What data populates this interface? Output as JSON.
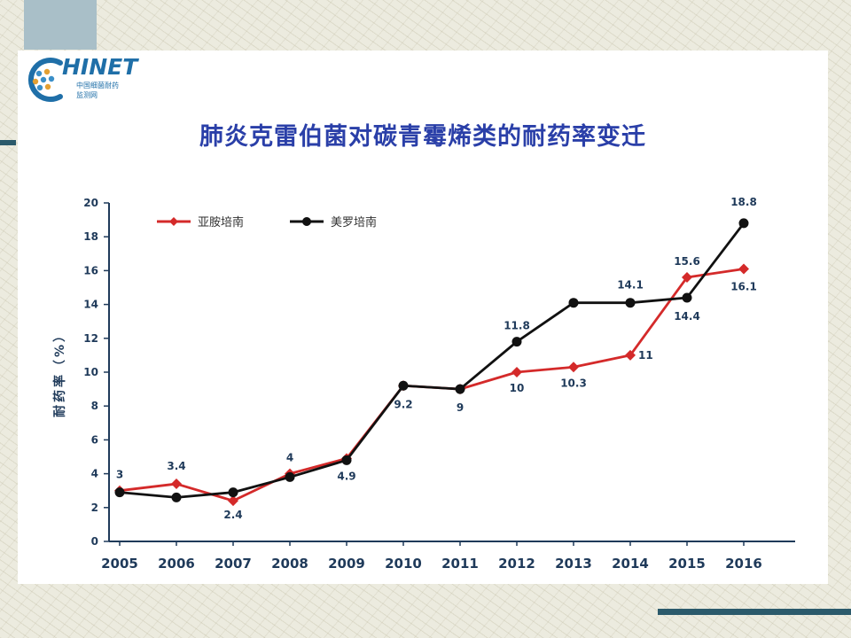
{
  "logo": {
    "text": "HINET",
    "sub_cn": "中国细菌耐药",
    "sub_cn2": "监测网"
  },
  "chart_data": {
    "type": "line",
    "title": "肺炎克雷伯菌对碳青霉烯类的耐药率变迁",
    "xlabel": "",
    "ylabel": "耐药率（%）",
    "x": [
      "2005",
      "2006",
      "2007",
      "2008",
      "2009",
      "2010",
      "2011",
      "2012",
      "2013",
      "2014",
      "2015",
      "2016"
    ],
    "ylim": [
      0,
      20
    ],
    "yticks": [
      0,
      2,
      4,
      6,
      8,
      10,
      12,
      14,
      16,
      18,
      20
    ],
    "grid": false,
    "legend_position": "top-left",
    "series": [
      {
        "name": "亚胺培南",
        "color": "#d42a2a",
        "marker": "diamond",
        "values": [
          3,
          3.4,
          2.4,
          4,
          4.9,
          9.2,
          9,
          10,
          10.3,
          11,
          15.6,
          16.1
        ]
      },
      {
        "name": "美罗培南",
        "color": "#111111",
        "marker": "circle",
        "values": [
          2.9,
          2.6,
          2.9,
          3.8,
          4.8,
          9.2,
          9,
          11.8,
          14.1,
          14.1,
          14.4,
          18.8
        ]
      }
    ],
    "data_labels": [
      "3",
      "3.4",
      "2.4",
      "4",
      "4.9",
      "9.2",
      "9",
      "11.8",
      "10",
      "10.3",
      "14.1",
      "11",
      "15.6",
      "14.4",
      "18.8",
      "16.1"
    ]
  }
}
